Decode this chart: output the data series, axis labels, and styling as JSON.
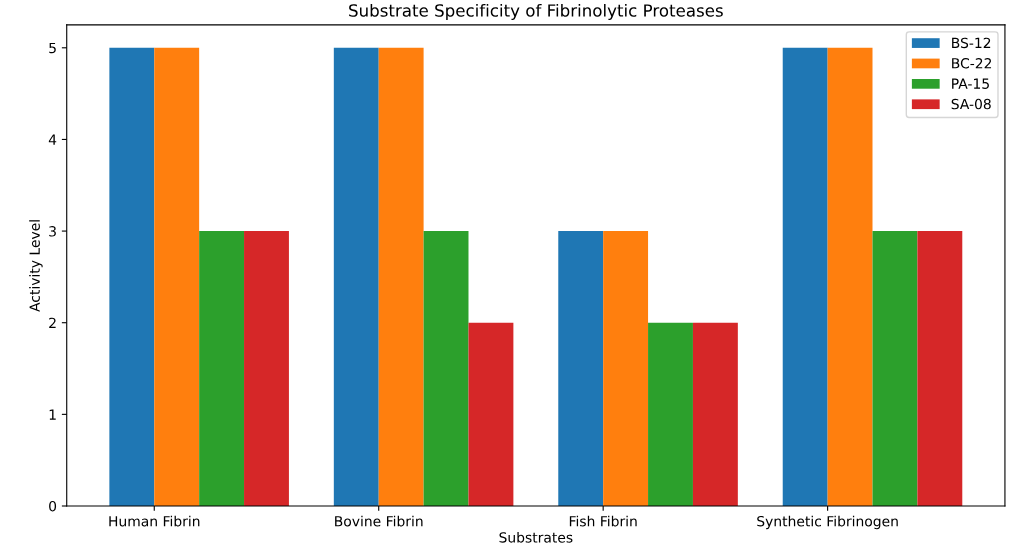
{
  "chart_data": {
    "type": "bar",
    "title": "Substrate Specificity of Fibrinolytic Proteases",
    "xlabel": "Substrates",
    "ylabel": "Activity Level",
    "categories": [
      "Human Fibrin",
      "Bovine Fibrin",
      "Fish Fibrin",
      "Synthetic Fibrinogen"
    ],
    "series": [
      {
        "name": "BS-12",
        "color": "#1f77b4",
        "values": [
          5,
          5,
          3,
          5
        ]
      },
      {
        "name": "BC-22",
        "color": "#ff7f0e",
        "values": [
          5,
          5,
          3,
          5
        ]
      },
      {
        "name": "PA-15",
        "color": "#2ca02c",
        "values": [
          3,
          3,
          2,
          3
        ]
      },
      {
        "name": "SA-08",
        "color": "#d62728",
        "values": [
          3,
          2,
          2,
          3
        ]
      }
    ],
    "ylim": [
      0,
      5.25
    ],
    "yticks": [
      0,
      1,
      2,
      3,
      4,
      5
    ],
    "grid": false,
    "legend": "top right"
  }
}
